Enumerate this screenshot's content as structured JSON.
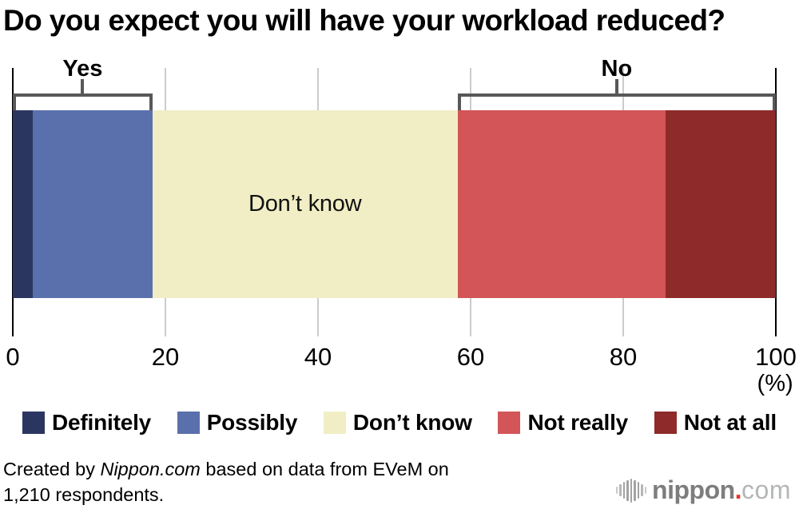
{
  "title": "Do you expect you will have your workload reduced?",
  "chart_data": {
    "type": "bar",
    "orientation": "horizontal-stacked",
    "title": "Do you expect you will have your workload reduced?",
    "unit": "%",
    "axis_unit_label": "(%)",
    "xlim": [
      0,
      100
    ],
    "x_ticks": [
      0,
      20,
      40,
      60,
      80,
      100
    ],
    "grid": "vertical, light gray at 20/40/60/80, black edge lines at 0 and 100",
    "segments": [
      {
        "label": "Definitely",
        "value": 2.6,
        "color": "#2b3660",
        "inline_label": ""
      },
      {
        "label": "Possibly",
        "value": 15.7,
        "color": "#5a70ad",
        "inline_label": ""
      },
      {
        "label": "Don’t know",
        "value": 40.0,
        "color": "#f1eec5",
        "inline_label": "Don’t know"
      },
      {
        "label": "Not really",
        "value": 27.2,
        "color": "#d35557",
        "inline_label": ""
      },
      {
        "label": "Not at all",
        "value": 14.5,
        "color": "#8e2a2a",
        "inline_label": ""
      }
    ],
    "brackets": [
      {
        "label": "Yes",
        "from_segment": 0,
        "to_segment": 1
      },
      {
        "label": "No",
        "from_segment": 3,
        "to_segment": 4
      }
    ],
    "legend_position": "below chart, single row"
  },
  "footer": {
    "credit_prefix": "Created by ",
    "credit_source": "Nippon.com",
    "credit_suffix": " based on data from EVeM on",
    "credit_line2": "1,210 respondents.",
    "logo": {
      "name": "nippon",
      "dot": ".",
      "tld": "com"
    }
  },
  "colors": {
    "background": "#ffffff",
    "bracket": "#58585a",
    "gridline": "#cccccc",
    "axis_line": "#000000",
    "text": "#000000",
    "logo_gray": "#7d7d7d",
    "logo_light_gray": "#b4b7b7",
    "logo_red": "#e63422"
  }
}
